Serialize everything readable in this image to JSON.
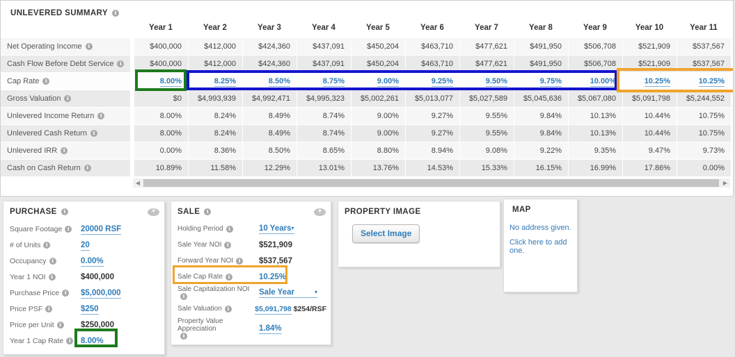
{
  "icons": {
    "info": "i",
    "eye_plus": "+",
    "scroll_left": "◀",
    "scroll_right": "▶",
    "caret_down": "▾"
  },
  "colors": {
    "highlight_green": "#1d7a1d",
    "highlight_blue": "#1414cf",
    "highlight_orange": "#f0a32c",
    "link_blue": "#2e7cb9"
  },
  "summary": {
    "title": "UNLEVERED SUMMARY",
    "columns": [
      "Year 1",
      "Year 2",
      "Year 3",
      "Year 4",
      "Year 5",
      "Year 6",
      "Year 7",
      "Year 8",
      "Year 9",
      "Year 10",
      "Year 11"
    ],
    "rows": [
      {
        "label": "Net Operating Income",
        "link": false,
        "values": [
          "$400,000",
          "$412,000",
          "$424,360",
          "$437,091",
          "$450,204",
          "$463,710",
          "$477,621",
          "$491,950",
          "$506,708",
          "$521,909",
          "$537,567"
        ]
      },
      {
        "label": "Cash Flow Before Debt Service",
        "link": false,
        "values": [
          "$400,000",
          "$412,000",
          "$424,360",
          "$437,091",
          "$450,204",
          "$463,710",
          "$477,621",
          "$491,950",
          "$506,708",
          "$521,909",
          "$537,567"
        ]
      },
      {
        "label": "Cap Rate",
        "link": true,
        "values": [
          "8.00%",
          "8.25%",
          "8.50%",
          "8.75%",
          "9.00%",
          "9.25%",
          "9.50%",
          "9.75%",
          "10.00%",
          "10.25%",
          "10.25%"
        ]
      },
      {
        "label": "Gross Valuation",
        "link": false,
        "values": [
          "$0",
          "$4,993,939",
          "$4,992,471",
          "$4,995,323",
          "$5,002,261",
          "$5,013,077",
          "$5,027,589",
          "$5,045,636",
          "$5,067,080",
          "$5,091,798",
          "$5,244,552"
        ]
      },
      {
        "label": "Unlevered Income Return",
        "link": false,
        "values": [
          "8.00%",
          "8.24%",
          "8.49%",
          "8.74%",
          "9.00%",
          "9.27%",
          "9.55%",
          "9.84%",
          "10.13%",
          "10.44%",
          "10.75%"
        ]
      },
      {
        "label": "Unlevered Cash Return",
        "link": false,
        "values": [
          "8.00%",
          "8.24%",
          "8.49%",
          "8.74%",
          "9.00%",
          "9.27%",
          "9.55%",
          "9.84%",
          "10.13%",
          "10.44%",
          "10.75%"
        ]
      },
      {
        "label": "Unlevered IRR",
        "link": false,
        "values": [
          "0.00%",
          "8.36%",
          "8.50%",
          "8.65%",
          "8.80%",
          "8.94%",
          "9.08%",
          "9.22%",
          "9.35%",
          "9.47%",
          "9.73%"
        ]
      },
      {
        "label": "Cash on Cash Return",
        "link": false,
        "values": [
          "10.89%",
          "11.58%",
          "12.29%",
          "13.01%",
          "13.76%",
          "14.53%",
          "15.33%",
          "16.15%",
          "16.99%",
          "17.86%",
          "0.00%"
        ]
      }
    ]
  },
  "purchase": {
    "title": "PURCHASE",
    "fields": [
      {
        "label": "Square Footage",
        "value": "20000 RSF",
        "style": "link"
      },
      {
        "label": "# of Units",
        "value": "20",
        "style": "link"
      },
      {
        "label": "Occupancy",
        "value": "0.00%",
        "style": "link"
      },
      {
        "label": "Year 1 NOI",
        "value": "$400,000",
        "style": "bold"
      },
      {
        "label": "Purchase Price",
        "value": "$5,000,000",
        "style": "link"
      },
      {
        "label": "Price PSF",
        "value": "$250",
        "style": "link"
      },
      {
        "label": "Price per Unit",
        "value": "$250,000",
        "style": "bold"
      },
      {
        "label": "Year 1 Cap Rate",
        "value": "8.00%",
        "style": "link"
      }
    ]
  },
  "sale": {
    "title": "SALE",
    "fields": [
      {
        "label": "Holding Period",
        "value": "10 Years",
        "style": "dropdown"
      },
      {
        "label": "Sale Year NOI",
        "value": "$521,909",
        "style": "bold"
      },
      {
        "label": "Forward Year NOI",
        "value": "$537,567",
        "style": "bold"
      },
      {
        "label": "Sale Cap Rate",
        "value": "10.25%",
        "style": "link"
      },
      {
        "label": "Sale Capitalization NOI",
        "value": "Sale Year",
        "style": "dropdown-wide"
      },
      {
        "label": "Sale Valuation",
        "value": "$5,091,798",
        "style": "link",
        "suffix": "$254/RSF"
      },
      {
        "label": "Property Value Appreciation",
        "value": "1.84%",
        "style": "link",
        "tall": true
      }
    ]
  },
  "property_image": {
    "title": "PROPERTY IMAGE",
    "button_label": "Select Image"
  },
  "map": {
    "title": "MAP",
    "line1": "No address given.",
    "line2": "Click here to add one."
  }
}
